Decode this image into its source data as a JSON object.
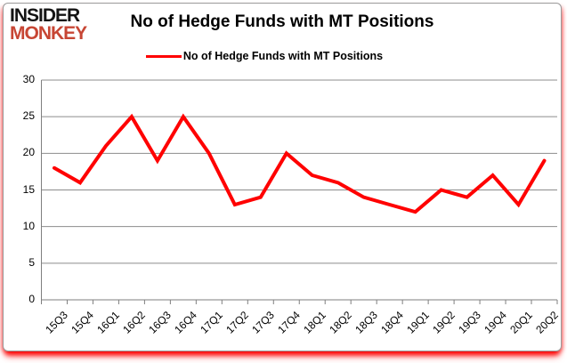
{
  "logo": {
    "line1": "INSIDER",
    "line2": "MONKEY"
  },
  "header": {
    "title": "No of Hedge Funds with MT Positions"
  },
  "legend": {
    "label": "No of Hedge Funds with MT Positions"
  },
  "colors": {
    "line": "#ff0000",
    "grid": "#8c8c8c",
    "axis": "#7f7f7f",
    "logo_black": "#141414",
    "logo_red": "#c74634",
    "border_glow": "#ff0000"
  },
  "chart_data": {
    "type": "line",
    "title": "No of Hedge Funds with MT Positions",
    "categories": [
      "15Q3",
      "15Q4",
      "16Q1",
      "16Q2",
      "16Q3",
      "16Q4",
      "17Q1",
      "17Q2",
      "17Q3",
      "17Q4",
      "18Q1",
      "18Q2",
      "18Q3",
      "18Q4",
      "19Q1",
      "19Q2",
      "19Q3",
      "19Q4",
      "20Q1",
      "20Q2"
    ],
    "series": [
      {
        "name": "No of Hedge Funds with MT Positions",
        "color": "#ff0000",
        "values": [
          18,
          16,
          21,
          25,
          19,
          25,
          20,
          13,
          14,
          20,
          17,
          16,
          14,
          13,
          12,
          15,
          14,
          17,
          13,
          19
        ]
      }
    ],
    "xlabel": "",
    "ylabel": "",
    "ylim": [
      0,
      30
    ],
    "y_ticks": [
      0,
      5,
      10,
      15,
      20,
      25,
      30
    ],
    "grid": "horizontal",
    "legend_position": "top-center"
  }
}
